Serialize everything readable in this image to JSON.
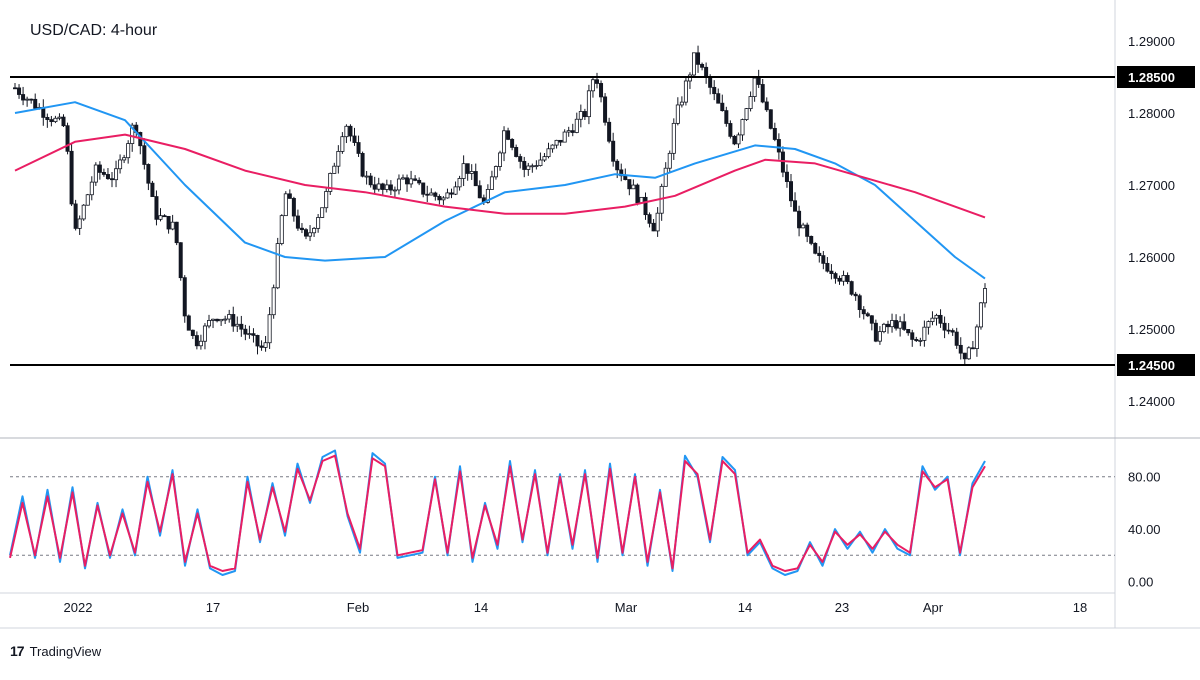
{
  "chart_data": [
    {
      "type": "candlestick",
      "title": "USD/CAD: 4-hour",
      "ylim": [
        1.235,
        1.295
      ],
      "y_ticks": [
        "1.24000",
        "1.25000",
        "1.26000",
        "1.27000",
        "1.28000",
        "1.29000"
      ],
      "horizontal_levels": [
        {
          "value": 1.285,
          "label": "1.28500"
        },
        {
          "value": 1.245,
          "label": "1.24500"
        }
      ],
      "x_ticks": [
        "2022",
        "17",
        "Feb",
        "14",
        "Mar",
        "14",
        "23",
        "Apr",
        "18"
      ],
      "series": [
        {
          "kind": "candles",
          "close_path": [
            [
              0,
              1.2835
            ],
            [
              6,
              1.28
            ],
            [
              10,
              1.278
            ],
            [
              12,
              1.263
            ],
            [
              16,
              1.272
            ],
            [
              20,
              1.271
            ],
            [
              24,
              1.279
            ],
            [
              28,
              1.266
            ],
            [
              32,
              1.264
            ],
            [
              34,
              1.252
            ],
            [
              36,
              1.248
            ],
            [
              40,
              1.252
            ],
            [
              44,
              1.251
            ],
            [
              48,
              1.248
            ],
            [
              50,
              1.247
            ],
            [
              54,
              1.269
            ],
            [
              58,
              1.262
            ],
            [
              62,
              1.268
            ],
            [
              66,
              1.279
            ],
            [
              70,
              1.271
            ],
            [
              74,
              1.269
            ],
            [
              78,
              1.271
            ],
            [
              82,
              1.269
            ],
            [
              86,
              1.268
            ],
            [
              90,
              1.273
            ],
            [
              94,
              1.267
            ],
            [
              98,
              1.278
            ],
            [
              102,
              1.272
            ],
            [
              106,
              1.274
            ],
            [
              110,
              1.277
            ],
            [
              114,
              1.28
            ],
            [
              116,
              1.286
            ],
            [
              120,
              1.273
            ],
            [
              124,
              1.269
            ],
            [
              128,
              1.264
            ],
            [
              132,
              1.279
            ],
            [
              136,
              1.288
            ],
            [
              140,
              1.282
            ],
            [
              144,
              1.276
            ],
            [
              148,
              1.285
            ],
            [
              152,
              1.276
            ],
            [
              156,
              1.266
            ],
            [
              160,
              1.26
            ],
            [
              164,
              1.258
            ],
            [
              168,
              1.255
            ],
            [
              172,
              1.249
            ],
            [
              176,
              1.251
            ],
            [
              180,
              1.248
            ],
            [
              184,
              1.252
            ],
            [
              188,
              1.249
            ],
            [
              190,
              1.245
            ],
            [
              192,
              1.249
            ],
            [
              194,
              1.256
            ]
          ]
        },
        {
          "kind": "ma",
          "name": "",
          "color": "#2196f3",
          "values": [
            [
              0,
              1.28
            ],
            [
              12,
              1.2815
            ],
            [
              22,
              1.279
            ],
            [
              34,
              1.27
            ],
            [
              46,
              1.262
            ],
            [
              54,
              1.26
            ],
            [
              62,
              1.2595
            ],
            [
              74,
              1.26
            ],
            [
              86,
              1.265
            ],
            [
              98,
              1.269
            ],
            [
              110,
              1.27
            ],
            [
              120,
              1.2715
            ],
            [
              128,
              1.271
            ],
            [
              136,
              1.273
            ],
            [
              148,
              1.2755
            ],
            [
              156,
              1.275
            ],
            [
              164,
              1.273
            ],
            [
              172,
              1.27
            ],
            [
              180,
              1.265
            ],
            [
              188,
              1.26
            ],
            [
              194,
              1.257
            ]
          ]
        },
        {
          "kind": "ma",
          "name": "",
          "color": "#e91e63",
          "values": [
            [
              0,
              1.272
            ],
            [
              12,
              1.276
            ],
            [
              22,
              1.277
            ],
            [
              34,
              1.275
            ],
            [
              46,
              1.272
            ],
            [
              58,
              1.27
            ],
            [
              70,
              1.269
            ],
            [
              86,
              1.267
            ],
            [
              98,
              1.266
            ],
            [
              110,
              1.266
            ],
            [
              122,
              1.267
            ],
            [
              132,
              1.2685
            ],
            [
              144,
              1.272
            ],
            [
              150,
              1.2735
            ],
            [
              160,
              1.273
            ],
            [
              170,
              1.271
            ],
            [
              180,
              1.269
            ],
            [
              194,
              1.2655
            ]
          ]
        }
      ]
    },
    {
      "type": "line",
      "title": "",
      "ylim": [
        -8,
        108
      ],
      "y_ticks": [
        "0.00",
        "40.00",
        "80.00"
      ],
      "dashed_levels": [
        80,
        20
      ],
      "series": [
        {
          "name": "",
          "color": "#2196f3",
          "values": [
            20,
            65,
            18,
            70,
            15,
            72,
            10,
            60,
            18,
            55,
            20,
            80,
            35,
            85,
            12,
            55,
            10,
            5,
            8,
            80,
            30,
            75,
            35,
            90,
            60,
            95,
            100,
            50,
            22,
            98,
            90,
            18,
            20,
            22,
            80,
            20,
            88,
            15,
            60,
            25,
            92,
            30,
            85,
            20,
            82,
            25,
            85,
            15,
            90,
            20,
            82,
            12,
            70,
            8,
            96,
            80,
            30,
            95,
            85,
            20,
            30,
            10,
            5,
            8,
            30,
            12,
            40,
            25,
            38,
            22,
            40,
            25,
            20,
            88,
            70,
            80,
            20,
            75,
            92
          ]
        },
        {
          "name": "",
          "color": "#e91e63",
          "values": [
            18,
            60,
            20,
            65,
            18,
            68,
            12,
            58,
            20,
            52,
            22,
            76,
            38,
            82,
            15,
            52,
            12,
            8,
            10,
            76,
            32,
            72,
            38,
            86,
            62,
            92,
            96,
            52,
            25,
            94,
            88,
            20,
            22,
            24,
            78,
            22,
            84,
            18,
            58,
            28,
            88,
            32,
            82,
            22,
            80,
            28,
            82,
            18,
            86,
            22,
            80,
            15,
            68,
            10,
            92,
            82,
            32,
            92,
            82,
            22,
            32,
            12,
            8,
            10,
            28,
            15,
            38,
            28,
            36,
            25,
            38,
            28,
            22,
            84,
            72,
            78,
            22,
            72,
            88
          ]
        }
      ]
    }
  ],
  "brand": {
    "logo_mark": "17",
    "name": "TradingView"
  }
}
